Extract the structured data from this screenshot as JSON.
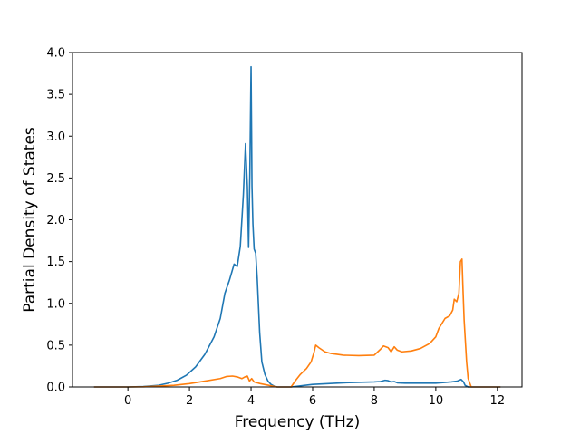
{
  "chart_data": {
    "type": "line",
    "title": "",
    "xlabel": "Frequency (THz)",
    "ylabel": "Partial Density of States",
    "xlim": [
      -1.8,
      12.8
    ],
    "ylim": [
      0.0,
      4.0
    ],
    "xticks": [
      0,
      2,
      4,
      6,
      8,
      10,
      12
    ],
    "xtick_labels": [
      "0",
      "2",
      "4",
      "6",
      "8",
      "10",
      "12"
    ],
    "yticks": [
      0.0,
      0.5,
      1.0,
      1.5,
      2.0,
      2.5,
      3.0,
      3.5,
      4.0
    ],
    "ytick_labels": [
      "0.0",
      "0.5",
      "1.0",
      "1.5",
      "2.0",
      "2.5",
      "3.0",
      "3.5",
      "4.0"
    ],
    "grid": false,
    "legend": "none",
    "series": [
      {
        "color": "#1f77b4",
        "x": [
          -1.1,
          -0.5,
          0.0,
          0.5,
          1.0,
          1.3,
          1.6,
          1.9,
          2.2,
          2.5,
          2.8,
          3.0,
          3.15,
          3.3,
          3.45,
          3.55,
          3.65,
          3.75,
          3.82,
          3.88,
          3.92,
          3.96,
          4.0,
          4.03,
          4.06,
          4.1,
          4.15,
          4.2,
          4.28,
          4.35,
          4.45,
          4.55,
          4.65,
          4.75,
          4.85,
          5.0,
          5.3,
          6.0,
          7.0,
          8.0,
          8.2,
          8.35,
          8.45,
          8.55,
          8.65,
          8.75,
          9.0,
          10.0,
          10.5,
          10.7,
          10.82,
          10.9,
          10.95,
          11.05,
          11.5,
          12.1
        ],
        "y": [
          0.0,
          0.0,
          0.0,
          0.005,
          0.02,
          0.045,
          0.08,
          0.14,
          0.24,
          0.39,
          0.6,
          0.82,
          1.12,
          1.28,
          1.47,
          1.44,
          1.68,
          2.3,
          2.91,
          2.4,
          1.67,
          2.55,
          3.83,
          2.4,
          1.95,
          1.65,
          1.6,
          1.3,
          0.65,
          0.3,
          0.15,
          0.07,
          0.03,
          0.01,
          0.0,
          0.0,
          0.0,
          0.03,
          0.05,
          0.06,
          0.065,
          0.08,
          0.075,
          0.06,
          0.065,
          0.05,
          0.045,
          0.045,
          0.06,
          0.07,
          0.09,
          0.06,
          0.02,
          0.0,
          0.0,
          0.0
        ]
      },
      {
        "color": "#ff7f0e",
        "x": [
          -1.1,
          -0.5,
          0.0,
          0.5,
          1.0,
          1.5,
          2.0,
          2.5,
          3.0,
          3.2,
          3.4,
          3.55,
          3.7,
          3.8,
          3.88,
          3.95,
          4.02,
          4.1,
          4.3,
          4.5,
          4.7,
          4.85,
          5.0,
          5.3,
          5.45,
          5.6,
          5.8,
          5.95,
          6.05,
          6.1,
          6.2,
          6.4,
          6.6,
          7.0,
          7.5,
          8.0,
          8.2,
          8.3,
          8.45,
          8.55,
          8.65,
          8.75,
          8.9,
          9.2,
          9.5,
          9.8,
          10.0,
          10.1,
          10.3,
          10.45,
          10.55,
          10.6,
          10.68,
          10.75,
          10.8,
          10.85,
          10.88,
          10.92,
          11.0,
          11.05,
          11.15,
          11.5,
          12.1
        ],
        "y": [
          0.0,
          0.0,
          0.0,
          0.002,
          0.01,
          0.02,
          0.04,
          0.07,
          0.1,
          0.125,
          0.13,
          0.12,
          0.1,
          0.12,
          0.13,
          0.07,
          0.1,
          0.06,
          0.04,
          0.025,
          0.01,
          0.0,
          0.0,
          0.0,
          0.08,
          0.15,
          0.22,
          0.3,
          0.42,
          0.5,
          0.47,
          0.42,
          0.4,
          0.38,
          0.375,
          0.38,
          0.45,
          0.49,
          0.47,
          0.42,
          0.48,
          0.44,
          0.42,
          0.43,
          0.46,
          0.52,
          0.6,
          0.7,
          0.82,
          0.85,
          0.92,
          1.05,
          1.02,
          1.12,
          1.5,
          1.53,
          1.2,
          0.8,
          0.3,
          0.1,
          0.0,
          0.0,
          0.0
        ]
      }
    ]
  }
}
